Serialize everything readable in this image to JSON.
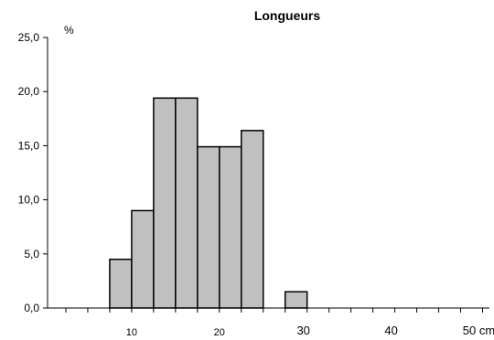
{
  "chart_data": {
    "type": "bar",
    "title": "Longueurs",
    "ylabel": "%",
    "xlabel": "",
    "ylim": [
      0,
      25
    ],
    "xlim": [
      0,
      50
    ],
    "y_ticks": [
      0,
      5,
      10,
      15,
      20,
      25
    ],
    "y_tick_labels": [
      "0,0",
      "5,0",
      "10,0",
      "15,0",
      "20,0",
      "25,0"
    ],
    "x_ticks": [
      {
        "value": 10,
        "label": "10"
      },
      {
        "value": 20,
        "label": "20"
      },
      {
        "value": 30,
        "label": "30"
      },
      {
        "value": 40,
        "label": "40"
      },
      {
        "value": 50,
        "label": "50 cm"
      }
    ],
    "bin_width": 2.5,
    "bins": [
      {
        "start": 7.5,
        "end": 10,
        "value": 4.5
      },
      {
        "start": 10,
        "end": 12.5,
        "value": 9.0
      },
      {
        "start": 12.5,
        "end": 15,
        "value": 19.4
      },
      {
        "start": 15,
        "end": 17.5,
        "value": 19.4
      },
      {
        "start": 17.5,
        "end": 20,
        "value": 14.9
      },
      {
        "start": 20,
        "end": 22.5,
        "value": 14.9
      },
      {
        "start": 22.5,
        "end": 25,
        "value": 16.4
      },
      {
        "start": 27.5,
        "end": 30,
        "value": 1.5
      }
    ],
    "bar_fill": "#c0c0c0",
    "bar_stroke": "#000000",
    "grid": false,
    "legend": "none"
  }
}
